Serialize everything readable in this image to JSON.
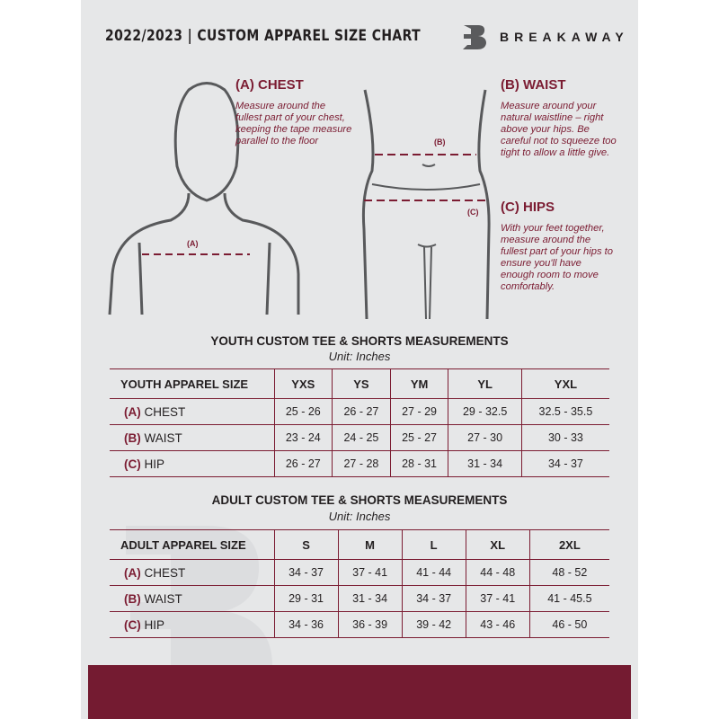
{
  "header": {
    "title": "2022/2023  |  CUSTOM APPAREL SIZE CHART",
    "brand": "BREAKAWAY"
  },
  "chest": {
    "heading": "(A) CHEST",
    "text": "Measure around the fullest part of your chest, keeping the tape measure parallel to the floor",
    "marker": "(A)"
  },
  "waist": {
    "heading": "(B) WAIST",
    "text": "Measure around your natural waistline – right above your hips. Be careful not to squeeze too tight to allow a little give.",
    "marker": "(B)"
  },
  "hips": {
    "heading": "(C) HIPS",
    "text": "With your feet together, measure around the fullest part of your hips to ensure you'll have enough room to move comfortably.",
    "marker": "(C)"
  },
  "colors": {
    "accent": "#7b1c32",
    "background": "#e6e7e8",
    "bar": "#741b31"
  },
  "youth": {
    "title": "YOUTH CUSTOM TEE & SHORTS MEASUREMENTS",
    "unit": "Unit: Inches",
    "header": [
      "YOUTH APPAREL SIZE",
      "YXS",
      "YS",
      "YM",
      "YL",
      "YXL"
    ],
    "rows": [
      {
        "letter": "(A)",
        "label": "CHEST",
        "values": [
          "25 - 26",
          "26 - 27",
          "27 - 29",
          "29 - 32.5",
          "32.5 - 35.5"
        ]
      },
      {
        "letter": "(B)",
        "label": "WAIST",
        "values": [
          "23 - 24",
          "24 - 25",
          "25 - 27",
          "27 - 30",
          "30 - 33"
        ]
      },
      {
        "letter": "(C)",
        "label": "HIP",
        "values": [
          "26 - 27",
          "27 - 28",
          "28 - 31",
          "31 - 34",
          "34 - 37"
        ]
      }
    ]
  },
  "adult": {
    "title": "ADULT CUSTOM TEE & SHORTS MEASUREMENTS",
    "unit": "Unit: Inches",
    "header": [
      "ADULT APPAREL SIZE",
      "S",
      "M",
      "L",
      "XL",
      "2XL"
    ],
    "rows": [
      {
        "letter": "(A)",
        "label": "CHEST",
        "values": [
          "34 - 37",
          "37 - 41",
          "41 - 44",
          "44 - 48",
          "48 - 52"
        ]
      },
      {
        "letter": "(B)",
        "label": "WAIST",
        "values": [
          "29 - 31",
          "31 - 34",
          "34 - 37",
          "37 - 41",
          "41 - 45.5"
        ]
      },
      {
        "letter": "(C)",
        "label": "HIP",
        "values": [
          "34 - 36",
          "36 - 39",
          "39 - 42",
          "43 - 46",
          "46 - 50"
        ]
      }
    ]
  }
}
